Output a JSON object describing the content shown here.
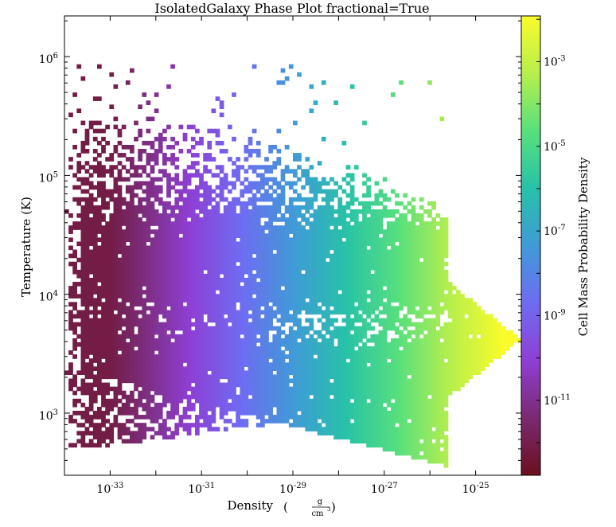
{
  "chart_data": {
    "type": "heatmap",
    "title": "IsolatedGalaxy Phase Plot fractional=True",
    "xlabel": "Density",
    "xunit_num": "g",
    "xunit_den": "cm",
    "xunit_den_exp": "3",
    "ylabel": "Temperature  (K)",
    "colorbar_label": "Cell Mass Probability Density",
    "x_scale": "log",
    "y_scale": "log",
    "colorbar_scale": "log",
    "xlim": [
      1e-34,
      1e-24
    ],
    "ylim": [
      300,
      2200000
    ],
    "clim": [
      1.7e-13,
      0.012
    ],
    "colormap": [
      "#6b0f1f",
      "#7a2a70",
      "#8e3fd4",
      "#6e6cf2",
      "#3f9bd6",
      "#27c2a8",
      "#58e07c",
      "#b7ef4c",
      "#fafb2a"
    ],
    "x_ticks": [
      {
        "base": "10",
        "exp": "-33",
        "value": 1e-33
      },
      {
        "base": "10",
        "exp": "-31",
        "value": 1e-31
      },
      {
        "base": "10",
        "exp": "-29",
        "value": 1e-29
      },
      {
        "base": "10",
        "exp": "-27",
        "value": 1e-27
      },
      {
        "base": "10",
        "exp": "-25",
        "value": 1e-25
      }
    ],
    "y_ticks": [
      {
        "base": "10",
        "exp": "3",
        "value": 1000
      },
      {
        "base": "10",
        "exp": "4",
        "value": 10000
      },
      {
        "base": "10",
        "exp": "5",
        "value": 100000
      },
      {
        "base": "10",
        "exp": "6",
        "value": 1000000
      }
    ],
    "colorbar_ticks": [
      {
        "base": "10",
        "exp": "-11",
        "value": 1e-11
      },
      {
        "base": "10",
        "exp": "-9",
        "value": 1e-09
      },
      {
        "base": "10",
        "exp": "-7",
        "value": 1e-07
      },
      {
        "base": "10",
        "exp": "-5",
        "value": 1e-05
      },
      {
        "base": "10",
        "exp": "-3",
        "value": 0.001
      }
    ],
    "grid": false,
    "legend": "none"
  }
}
